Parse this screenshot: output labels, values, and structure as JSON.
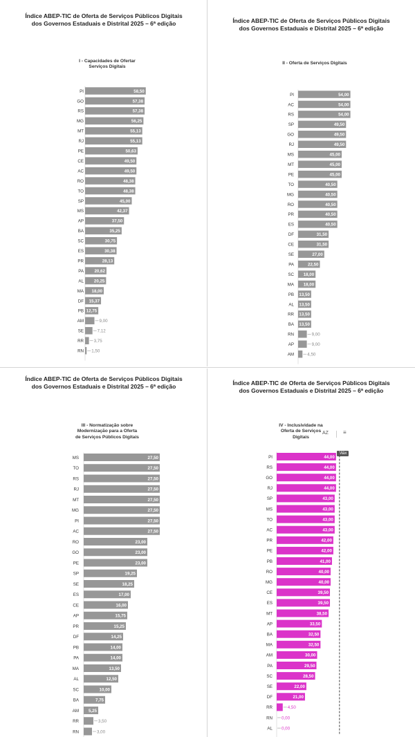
{
  "colors": {
    "gray_bar": "#979797",
    "magenta_bar": "#db33c9",
    "label_gray": "#333333",
    "connector": "#9a9a9a",
    "magenta_text": "#db33c9"
  },
  "toolbar": {
    "sort_icon": "sort-az-icon",
    "sort_label": "AZ",
    "filter_icon": "filter-icon",
    "max_label": "Máx"
  },
  "chart_data": [
    {
      "type": "bar",
      "orientation": "horizontal",
      "title": "Índice ABEP-TIC de Oferta de Serviços Públicos Digitais\ndos Governos Estaduais e Distrital 2025 – 6ª edição",
      "subtitle": "I - Capacidades de Ofertar\nServiços Digitais",
      "categories": [
        "PI",
        "GO",
        "RS",
        "MG",
        "MT",
        "RJ",
        "PE",
        "CE",
        "AC",
        "RO",
        "TO",
        "SP",
        "MS",
        "AP",
        "BA",
        "SC",
        "ES",
        "PR",
        "PA",
        "AL",
        "MA",
        "DF",
        "PB",
        "AM",
        "SE",
        "RR",
        "RN"
      ],
      "values": [
        58.5,
        57.38,
        57.38,
        56.25,
        55.13,
        55.13,
        50.63,
        49.5,
        49.5,
        48.38,
        48.38,
        45.0,
        42.37,
        37.5,
        35.25,
        30.75,
        30.38,
        28.13,
        20.62,
        20.25,
        18.0,
        15.37,
        12.75,
        9.0,
        7.12,
        3.75,
        1.5
      ],
      "value_labels": [
        "58,50",
        "57,38",
        "57,38",
        "56,25",
        "55,13",
        "55,13",
        "50,63",
        "49,50",
        "49,50",
        "48,38",
        "48,38",
        "45,00",
        "42,37",
        "37,50",
        "35,25",
        "30,75",
        "30,38",
        "28,13",
        "20,62",
        "20,25",
        "18,00",
        "15,37",
        "12,75",
        "9,00",
        "7,12",
        "3,75",
        "1,50"
      ],
      "xlim": [
        0,
        100
      ]
    },
    {
      "type": "bar",
      "orientation": "horizontal",
      "title": "Índice ABEP-TIC de Oferta de Serviços Públicos Digitais\ndos Governos Estaduais e Distrital 2025 – 6ª edição",
      "subtitle": "II - Oferta de Serviços Digitais",
      "categories": [
        "PI",
        "AC",
        "RS",
        "SP",
        "GO",
        "RJ",
        "MS",
        "MT",
        "PE",
        "TO",
        "MG",
        "RO",
        "PR",
        "ES",
        "DF",
        "CE",
        "SE",
        "PA",
        "SC",
        "MA",
        "PB",
        "AL",
        "RR",
        "BA",
        "RN",
        "AP",
        "AM"
      ],
      "values": [
        54.0,
        54.0,
        54.0,
        49.5,
        49.5,
        49.5,
        45.0,
        45.0,
        45.0,
        40.5,
        40.5,
        40.5,
        40.5,
        40.5,
        31.5,
        31.5,
        27.0,
        22.5,
        18.0,
        18.0,
        13.5,
        13.5,
        13.5,
        13.5,
        9.0,
        9.0,
        4.5
      ],
      "value_labels": [
        "54,00",
        "54,00",
        "54,00",
        "49,50",
        "49,50",
        "49,50",
        "45,00",
        "45,00",
        "45,00",
        "40,50",
        "40,50",
        "40,50",
        "40,50",
        "40,50",
        "31,50",
        "31,50",
        "27,00",
        "22,50",
        "18,00",
        "18,00",
        "13,50",
        "13,50",
        "13,50",
        "13,50",
        "9,00",
        "9,00",
        "4,50"
      ],
      "xlim": [
        0,
        100
      ]
    },
    {
      "type": "bar",
      "orientation": "horizontal",
      "title": "Índice ABEP-TIC de Oferta de Serviços Públicos Digitais\ndos Governos Estaduais e Distrital 2025 – 6ª edição",
      "subtitle": "III - Normatização sobre\nModernização para a Oferta\nde Serviços Públicos Digitais",
      "categories": [
        "MS",
        "TO",
        "RS",
        "RJ",
        "MT",
        "MG",
        "PI",
        "AC",
        "RO",
        "GO",
        "PE",
        "SP",
        "SE",
        "ES",
        "CE",
        "AP",
        "PR",
        "DF",
        "PB",
        "PA",
        "MA",
        "AL",
        "SC",
        "BA",
        "AM",
        "RR",
        "RN"
      ],
      "values": [
        27.5,
        27.5,
        27.5,
        27.5,
        27.5,
        27.5,
        27.5,
        27.5,
        23.0,
        23.0,
        23.0,
        19.25,
        18.25,
        17.0,
        16.0,
        15.75,
        15.25,
        14.25,
        14.0,
        14.0,
        13.5,
        12.5,
        10.0,
        7.75,
        5.25,
        3.5,
        3.0
      ],
      "value_labels": [
        "27,50",
        "27,50",
        "27,50",
        "27,50",
        "27,50",
        "27,50",
        "27,50",
        "27,50",
        "23,00",
        "23,00",
        "23,00",
        "19,25",
        "18,25",
        "17,00",
        "16,00",
        "15,75",
        "15,25",
        "14,25",
        "14,00",
        "14,00",
        "13,50",
        "12,50",
        "10,00",
        "7,75",
        "5,25",
        "3,50",
        "3,00"
      ],
      "xlim": [
        0,
        30
      ]
    },
    {
      "type": "bar",
      "orientation": "horizontal",
      "title": "Índice ABEP-TIC de Oferta de Serviços Públicos Digitais\ndos Governos Estaduais e Distrital 2025 – 6ª edição",
      "subtitle": "IV - Inclusividade na\nOferta de Serviços\nDigitais",
      "categories": [
        "PI",
        "RS",
        "GO",
        "RJ",
        "SP",
        "MS",
        "TO",
        "AC",
        "PR",
        "PE",
        "PB",
        "RO",
        "MG",
        "CE",
        "ES",
        "MT",
        "AP",
        "BA",
        "MA",
        "AM",
        "PA",
        "SC",
        "SE",
        "DF",
        "RR",
        "RN",
        "AL"
      ],
      "values": [
        44.0,
        44.0,
        44.0,
        44.0,
        43.0,
        43.0,
        43.0,
        43.0,
        42.0,
        42.0,
        41.0,
        40.0,
        40.0,
        39.5,
        39.5,
        38.5,
        33.5,
        32.5,
        32.5,
        30.0,
        29.5,
        28.5,
        22.0,
        21.0,
        4.5,
        0.0,
        0.0
      ],
      "value_labels": [
        "44,00",
        "44,00",
        "44,00",
        "44,00",
        "43,00",
        "43,00",
        "43,00",
        "43,00",
        "42,00",
        "42,00",
        "41,00",
        "40,00",
        "40,00",
        "39,50",
        "39,50",
        "38,50",
        "33,50",
        "32,50",
        "32,50",
        "30,00",
        "29,50",
        "28,50",
        "22,00",
        "21,00",
        "4,50",
        "0,00",
        "0,00"
      ],
      "xlim": [
        0,
        100
      ]
    }
  ]
}
